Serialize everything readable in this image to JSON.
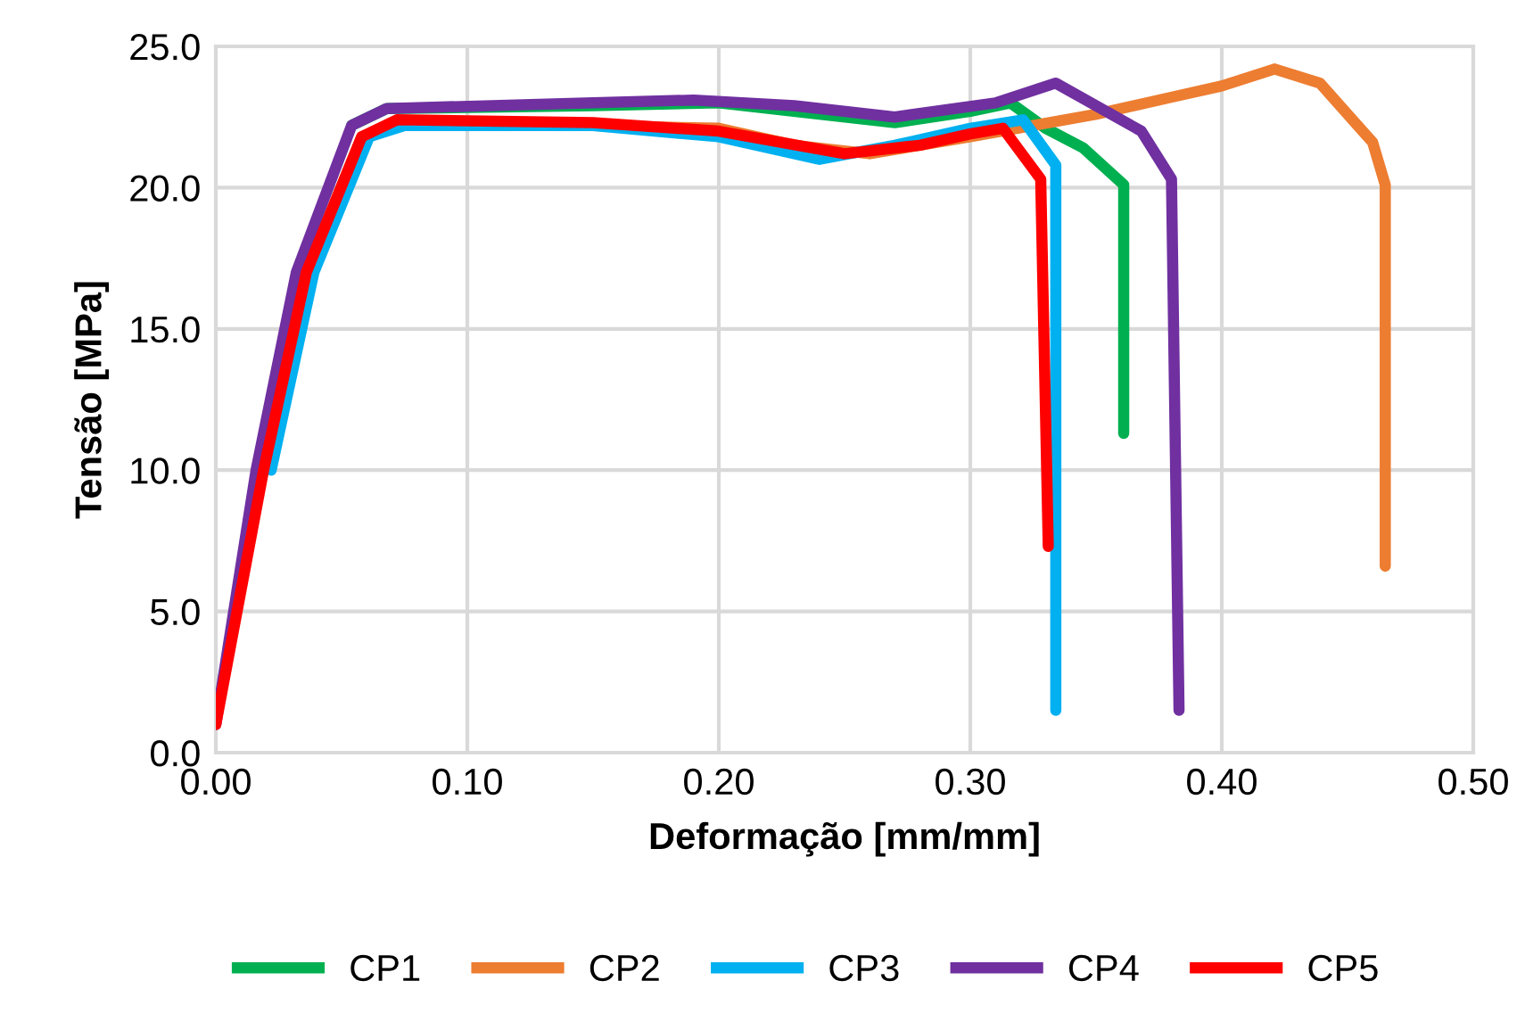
{
  "chart_data": {
    "type": "line",
    "xlabel": "Deformação [mm/mm]",
    "ylabel": "Tensão [MPa]",
    "xlim": [
      0,
      0.5
    ],
    "ylim": [
      0,
      25
    ],
    "xticks": [
      {
        "value": 0,
        "label": "0.00"
      },
      {
        "value": 0.1,
        "label": "0.10"
      },
      {
        "value": 0.2,
        "label": "0.20"
      },
      {
        "value": 0.3,
        "label": "0.30"
      },
      {
        "value": 0.4,
        "label": "0.40"
      },
      {
        "value": 0.5,
        "label": "0.50"
      }
    ],
    "yticks": [
      {
        "value": 0,
        "label": "0.0"
      },
      {
        "value": 5,
        "label": "5.0"
      },
      {
        "value": 10,
        "label": "10.0"
      },
      {
        "value": 15,
        "label": "15.0"
      },
      {
        "value": 20,
        "label": "20.0"
      },
      {
        "value": 25,
        "label": "25.0"
      }
    ],
    "grid": true,
    "legend": "bottom",
    "marker": "none",
    "line_style": "solid",
    "series": [
      {
        "name": "CP1",
        "color": "#00b050",
        "x": [
          0.054,
          0.068,
          0.15,
          0.2,
          0.24,
          0.27,
          0.3,
          0.316,
          0.33,
          0.345,
          0.361,
          0.361
        ],
        "values": [
          22.2,
          22.8,
          22.9,
          23.0,
          22.6,
          22.3,
          22.7,
          23.0,
          22.1,
          21.4,
          20.1,
          11.3
        ]
      },
      {
        "name": "CP2",
        "color": "#ed7d31",
        "x": [
          0.036,
          0.058,
          0.072,
          0.15,
          0.2,
          0.23,
          0.26,
          0.3,
          0.35,
          0.38,
          0.4,
          0.421,
          0.439,
          0.46,
          0.465,
          0.465
        ],
        "values": [
          17.0,
          21.8,
          22.3,
          22.2,
          22.1,
          21.5,
          21.2,
          21.8,
          22.6,
          23.2,
          23.6,
          24.2,
          23.7,
          21.6,
          20.1,
          6.6
        ]
      },
      {
        "name": "CP3",
        "color": "#00b0f0",
        "x": [
          0.022,
          0.039,
          0.061,
          0.075,
          0.15,
          0.2,
          0.24,
          0.27,
          0.3,
          0.321,
          0.334,
          0.334
        ],
        "values": [
          10.0,
          17.0,
          21.8,
          22.2,
          22.2,
          21.8,
          21.0,
          21.5,
          22.1,
          22.4,
          20.8,
          1.5
        ]
      },
      {
        "name": "CP4",
        "color": "#7030a0",
        "x": [
          0,
          0.016,
          0.032,
          0.054,
          0.068,
          0.15,
          0.19,
          0.23,
          0.27,
          0.31,
          0.334,
          0.368,
          0.38,
          0.383
        ],
        "values": [
          1.0,
          10.0,
          17.0,
          22.2,
          22.8,
          23.0,
          23.1,
          22.9,
          22.5,
          23.0,
          23.7,
          22.0,
          20.3,
          1.5
        ]
      },
      {
        "name": "CP5",
        "color": "#ff0000",
        "x": [
          0,
          0.019,
          0.036,
          0.058,
          0.072,
          0.15,
          0.2,
          0.25,
          0.28,
          0.3,
          0.313,
          0.328,
          0.331
        ],
        "values": [
          1.0,
          10.0,
          17.0,
          21.8,
          22.4,
          22.3,
          22.0,
          21.2,
          21.5,
          21.9,
          22.1,
          20.3,
          7.3
        ]
      }
    ]
  }
}
